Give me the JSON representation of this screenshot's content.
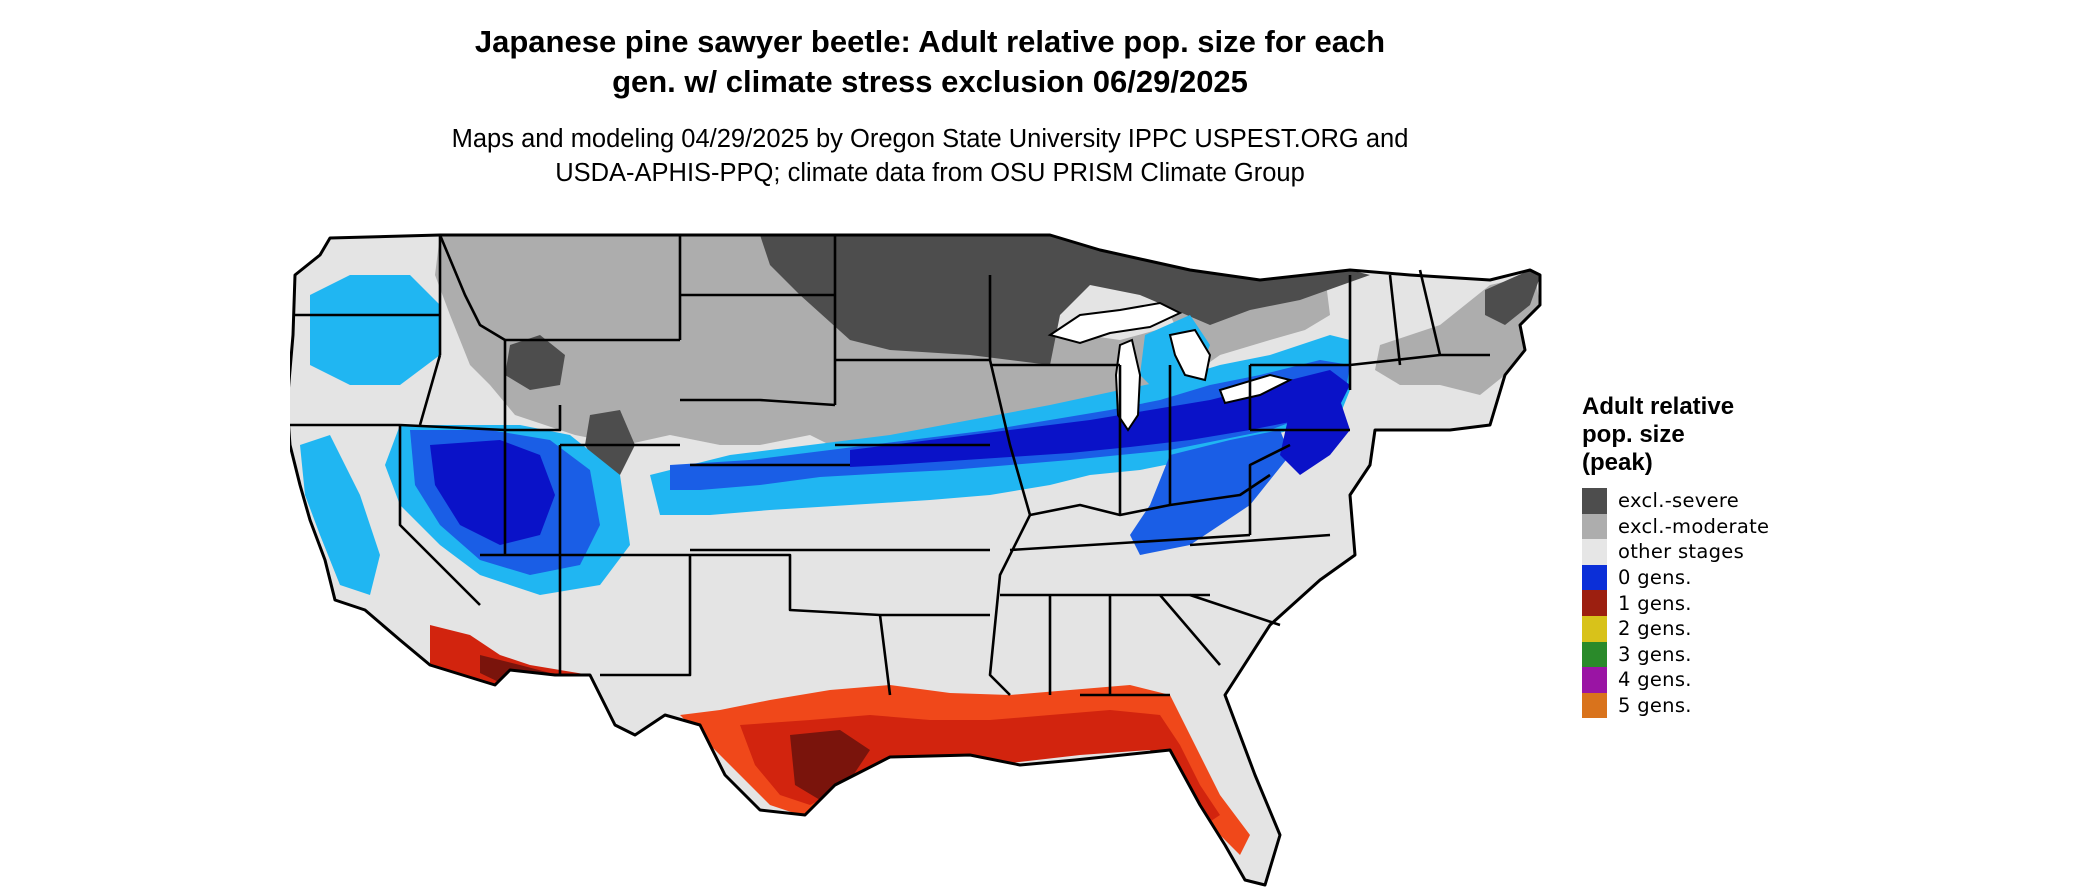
{
  "title": {
    "line1": "Japanese pine sawyer beetle: Adult relative pop. size for each",
    "line2": "gen. w/ climate stress exclusion 06/29/2025"
  },
  "subtitle": {
    "line1": "Maps and modeling 04/29/2025 by Oregon State University IPPC USPEST.ORG and",
    "line2": "USDA-APHIS-PPQ; climate data from OSU PRISM Climate Group"
  },
  "legend": {
    "title_lines": [
      "Adult relative",
      "pop. size",
      "(peak)"
    ],
    "items": [
      {
        "label": "excl.-severe",
        "color": "#4d4d4d"
      },
      {
        "label": "excl.-moderate",
        "color": "#adadad"
      },
      {
        "label": "other stages",
        "color": "#e6e6e6"
      },
      {
        "label": "0 gens.",
        "color": "#0b2fd8"
      },
      {
        "label": "1 gens.",
        "color": "#9c1f10"
      },
      {
        "label": "2 gens.",
        "color": "#d8c21a"
      },
      {
        "label": "3 gens.",
        "color": "#2a8a2a"
      },
      {
        "label": "4 gens.",
        "color": "#9a14a4"
      },
      {
        "label": "5 gens.",
        "color": "#d9731c"
      }
    ]
  },
  "map": {
    "region": "Contiguous United States",
    "palette": {
      "land": "#e4e4e4",
      "excl_severe": "#4d4d4d",
      "excl_moderate": "#adadad",
      "low_light_blue": "#20b6f2",
      "low_blue": "#1a5ee6",
      "low_dark_blue": "#0a12c8",
      "gen1_dark_red": "#7a140c",
      "gen1_red": "#d2240e",
      "gen1_orange": "#f0481a",
      "border": "#000000",
      "water": "#ffffff"
    }
  }
}
